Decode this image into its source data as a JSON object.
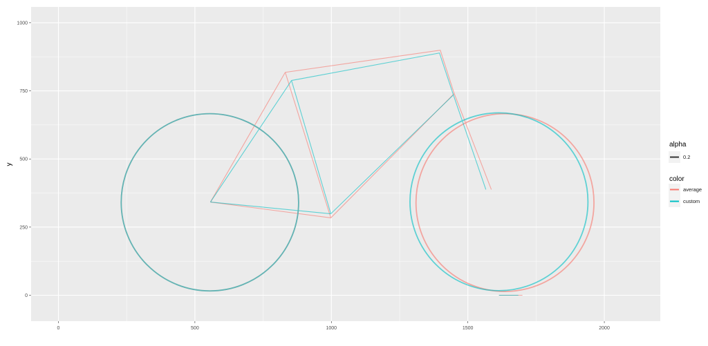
{
  "chart_data": {
    "type": "line",
    "title": "",
    "xlabel": "",
    "ylabel": "y",
    "xlim": [
      -100,
      2205
    ],
    "ylim": [
      -95,
      1058
    ],
    "x_ticks": [
      0,
      500,
      1000,
      1500,
      2000
    ],
    "y_ticks": [
      0,
      250,
      500,
      750,
      1000
    ],
    "grid": true,
    "legend_position": "right",
    "legends": {
      "alpha": {
        "title": "alpha",
        "entries": [
          "0.2"
        ]
      },
      "color": {
        "title": "color",
        "entries": [
          "average",
          "custom"
        ]
      }
    },
    "alpha": 0.2,
    "series": [
      {
        "name": "average",
        "color": "#F8766D",
        "frame_paths": [
          [
            [
              557,
              342
            ],
            [
              831,
              818
            ],
            [
              1399,
              899
            ],
            [
              1450,
              740
            ],
            [
              1586,
              388
            ]
          ],
          [
            [
              831,
              818
            ],
            [
              998,
              284
            ],
            [
              1450,
              740
            ]
          ],
          [
            [
              998,
              284
            ],
            [
              557,
              342
            ]
          ]
        ],
        "wheels": [
          {
            "cx": 555,
            "cy": 341,
            "r": 325
          },
          {
            "cx": 1636,
            "cy": 340,
            "r": 326
          }
        ],
        "ground": [
          [
            1614,
            0
          ],
          [
            1700,
            0
          ]
        ]
      },
      {
        "name": "custom",
        "color": "#00BFC4",
        "frame_paths": [
          [
            [
              557,
              342
            ],
            [
              854,
              788
            ],
            [
              1396,
              889
            ],
            [
              1447,
              735
            ],
            [
              1566,
              388
            ]
          ],
          [
            [
              854,
              788
            ],
            [
              998,
              299
            ],
            [
              1447,
              735
            ]
          ],
          [
            [
              998,
              299
            ],
            [
              557,
              342
            ]
          ]
        ],
        "wheels": [
          {
            "cx": 555,
            "cy": 341,
            "r": 325
          },
          {
            "cx": 1614,
            "cy": 343,
            "r": 326
          }
        ],
        "ground": [
          [
            1614,
            0
          ],
          [
            1685,
            0
          ]
        ]
      }
    ]
  }
}
